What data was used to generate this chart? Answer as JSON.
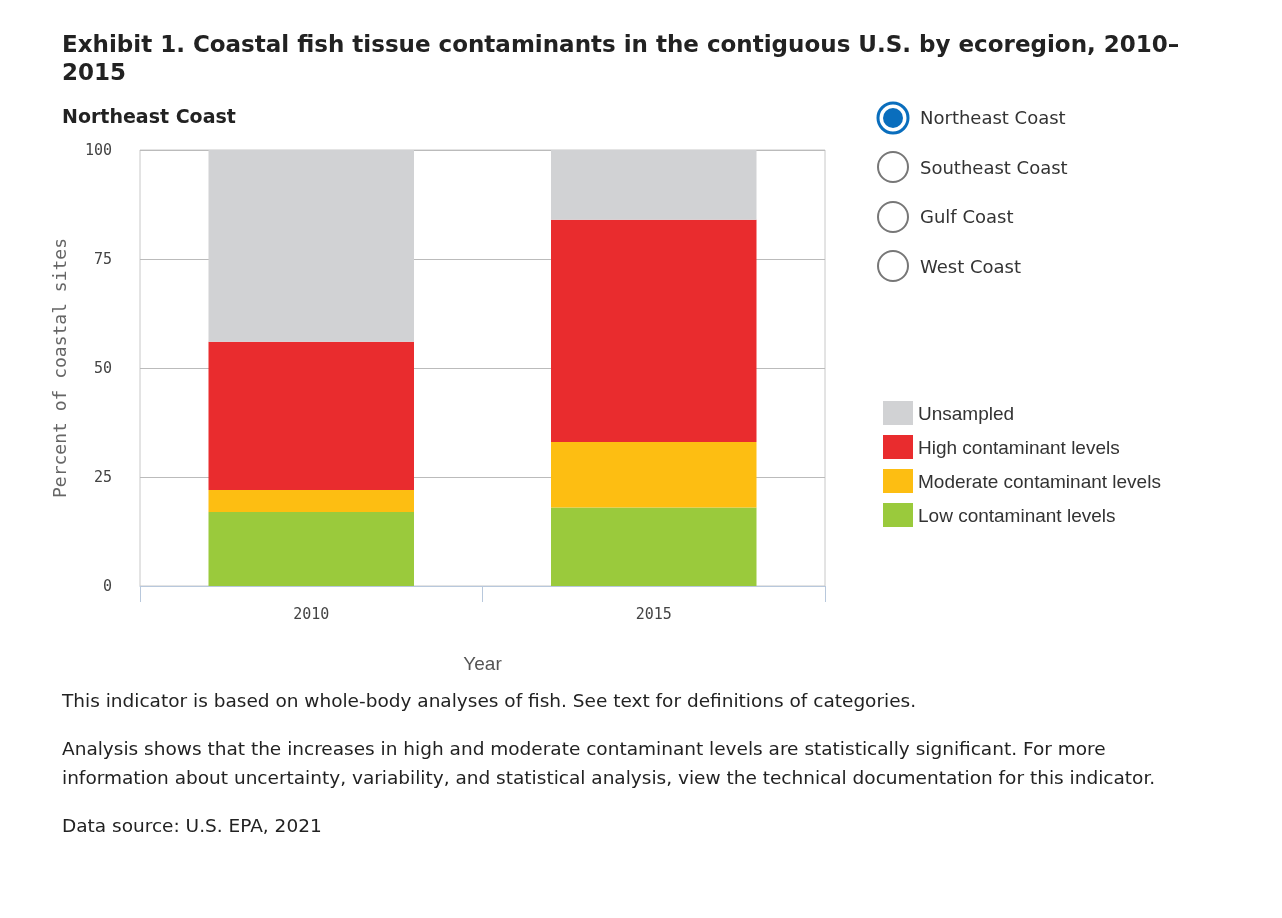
{
  "chart_data": {
    "type": "bar",
    "title": "Exhibit 1. Coastal fish tissue contaminants in the contiguous U.S. by ecoregion, 2010–2015",
    "subtitle": "Northeast Coast",
    "xlabel": "Year",
    "ylabel": "Percent of coastal sites",
    "categories": [
      "2010",
      "2015"
    ],
    "stacked": true,
    "series": [
      {
        "name": "Low contaminant levels",
        "color": "#9aca3c",
        "values": [
          17,
          18
        ]
      },
      {
        "name": "Moderate contaminant levels",
        "color": "#fdbe12",
        "values": [
          5,
          15
        ]
      },
      {
        "name": "High contaminant levels",
        "color": "#e92c2e",
        "values": [
          34,
          51
        ]
      },
      {
        "name": "Unsampled",
        "color": "#d1d2d4",
        "values": [
          44,
          16
        ]
      }
    ],
    "ylim": [
      0,
      100
    ],
    "yticks": [
      0,
      25,
      50,
      75,
      100
    ],
    "grid": "y",
    "legend": "right",
    "annotations": [
      "Northeast Coast",
      "Southeast Coast",
      "Gulf Coast",
      "West Coast",
      "This indicator is based on whole-body analyses of fish. See text for definitions of categories.",
      "Analysis shows that the increases in high and moderate contaminant levels are statistically significant. For more information about uncertainty, variability, and statistical analysis, view the technical documentation for this indicator.",
      "Data source: U.S. EPA, 2021"
    ]
  }
}
